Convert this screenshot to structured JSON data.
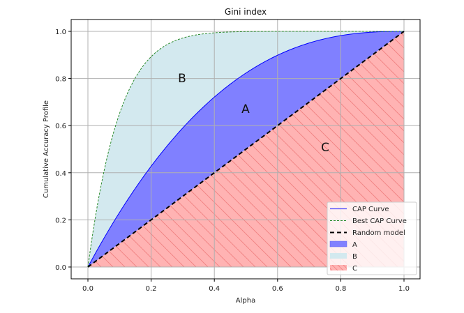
{
  "chart_data": {
    "type": "area",
    "title": "Gini index",
    "xlabel": "Alpha",
    "ylabel": "Cumulative Accuracy Profile",
    "xlim": [
      -0.05,
      1.05
    ],
    "ylim": [
      -0.05,
      1.05
    ],
    "grid": true,
    "legend_position": "lower right",
    "x_ticks": [
      "0.0",
      "0.2",
      "0.4",
      "0.6",
      "0.8",
      "1.0"
    ],
    "y_ticks": [
      "0.0",
      "0.2",
      "0.4",
      "0.6",
      "0.8",
      "1.0"
    ],
    "x": [
      0.0,
      0.1,
      0.2,
      0.3,
      0.4,
      0.5,
      0.6,
      0.7,
      0.8,
      0.9,
      1.0
    ],
    "series": [
      {
        "name": "CAP Curve",
        "kind": "line",
        "style": "solid",
        "color": "#0000ff",
        "values": [
          0.0,
          0.23,
          0.43,
          0.59,
          0.72,
          0.82,
          0.9,
          0.95,
          0.98,
          0.997,
          1.0
        ]
      },
      {
        "name": "Best CAP Curve",
        "kind": "line",
        "style": "dotted",
        "color": "#008000",
        "values": [
          0.0,
          0.65,
          0.89,
          0.97,
          0.994,
          0.999,
          1.0,
          1.0,
          1.0,
          1.0,
          1.0
        ]
      },
      {
        "name": "Random model",
        "kind": "line",
        "style": "dashed",
        "color": "#000000",
        "values": [
          0.0,
          0.1,
          0.2,
          0.3,
          0.4,
          0.5,
          0.6,
          0.7,
          0.8,
          0.9,
          1.0
        ]
      },
      {
        "name": "A",
        "kind": "fill",
        "color": "#8080ff",
        "between": [
          "Random model",
          "CAP Curve"
        ]
      },
      {
        "name": "B",
        "kind": "fill",
        "color": "#d3e9ef",
        "between": [
          "CAP Curve",
          "Best CAP Curve"
        ]
      },
      {
        "name": "C",
        "kind": "fill",
        "color": "#ffb3b3",
        "hatch": "\\\\",
        "between": [
          "zero",
          "Random model"
        ]
      }
    ],
    "annotations": [
      {
        "text": "A",
        "x": 0.5,
        "y": 0.67
      },
      {
        "text": "B",
        "x": 0.3,
        "y": 0.8
      },
      {
        "text": "C",
        "x": 0.75,
        "y": 0.51
      }
    ]
  },
  "legend": {
    "items": [
      {
        "label": "CAP Curve"
      },
      {
        "label": "Best CAP Curve"
      },
      {
        "label": "Random model"
      },
      {
        "label": "A"
      },
      {
        "label": "B"
      },
      {
        "label": "C"
      }
    ]
  }
}
